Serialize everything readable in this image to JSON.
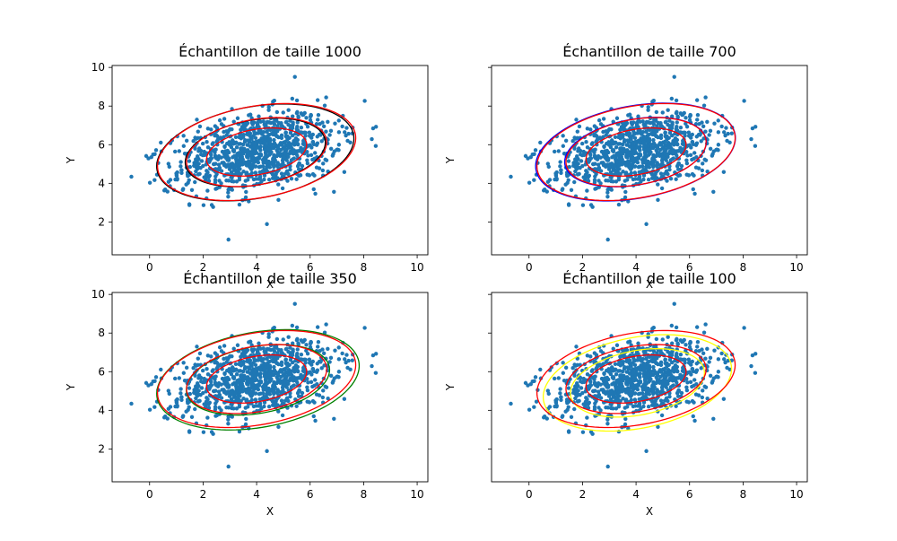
{
  "chart_data": [
    {
      "type": "scatter",
      "title": "Échantillon de taille 1000",
      "xlabel": "X",
      "ylabel": "Y",
      "xlim": [
        -1.4,
        10.4
      ],
      "ylim": [
        0.3,
        10.1
      ],
      "xticks": [
        0,
        2,
        4,
        6,
        8,
        10
      ],
      "yticks": [
        2,
        4,
        6,
        8,
        10
      ],
      "show_y_ticklabels": true,
      "point_color": "#1f77b4",
      "ellipses": [
        {
          "cx": 3.95,
          "cy": 5.6,
          "a": 3.8,
          "b": 2.33,
          "angle_deg": 18,
          "color": "#000000"
        },
        {
          "cx": 3.95,
          "cy": 5.6,
          "a": 2.7,
          "b": 1.65,
          "angle_deg": 18,
          "color": "#000000"
        },
        {
          "cx": 4.0,
          "cy": 5.62,
          "a": 3.82,
          "b": 2.33,
          "angle_deg": 18,
          "color": "#ff0000"
        },
        {
          "cx": 4.0,
          "cy": 5.62,
          "a": 2.7,
          "b": 1.66,
          "angle_deg": 18,
          "color": "#ff0000"
        },
        {
          "cx": 4.0,
          "cy": 5.62,
          "a": 1.93,
          "b": 1.15,
          "angle_deg": 18,
          "color": "#ff0000"
        }
      ]
    },
    {
      "type": "scatter",
      "title": "Échantillon de taille 700",
      "xlabel": "X",
      "ylabel": "Y",
      "xlim": [
        -1.4,
        10.4
      ],
      "ylim": [
        0.3,
        10.1
      ],
      "xticks": [
        0,
        2,
        4,
        6,
        8,
        10
      ],
      "yticks": [
        2,
        4,
        6,
        8,
        10
      ],
      "show_y_ticklabels": false,
      "point_color": "#1f77b4",
      "ellipses": [
        {
          "cx": 3.98,
          "cy": 5.62,
          "a": 3.85,
          "b": 2.35,
          "angle_deg": 18,
          "color": "#0000ff"
        },
        {
          "cx": 3.98,
          "cy": 5.62,
          "a": 2.73,
          "b": 1.67,
          "angle_deg": 18,
          "color": "#0000ff"
        },
        {
          "cx": 4.0,
          "cy": 5.62,
          "a": 3.82,
          "b": 2.33,
          "angle_deg": 18,
          "color": "#ff0000"
        },
        {
          "cx": 4.0,
          "cy": 5.62,
          "a": 2.7,
          "b": 1.66,
          "angle_deg": 18,
          "color": "#ff0000"
        },
        {
          "cx": 4.0,
          "cy": 5.62,
          "a": 1.93,
          "b": 1.15,
          "angle_deg": 18,
          "color": "#ff0000"
        }
      ]
    },
    {
      "type": "scatter",
      "title": "Échantillon de taille 350",
      "xlabel": "X",
      "ylabel": "Y",
      "xlim": [
        -1.4,
        10.4
      ],
      "ylim": [
        0.3,
        10.1
      ],
      "xticks": [
        0,
        2,
        4,
        6,
        8,
        10
      ],
      "yticks": [
        2,
        4,
        6,
        8,
        10
      ],
      "show_y_ticklabels": true,
      "point_color": "#1f77b4",
      "ellipses": [
        {
          "cx": 4.05,
          "cy": 5.58,
          "a": 3.9,
          "b": 2.42,
          "angle_deg": 18,
          "color": "#008000"
        },
        {
          "cx": 4.05,
          "cy": 5.58,
          "a": 2.76,
          "b": 1.7,
          "angle_deg": 18,
          "color": "#008000"
        },
        {
          "cx": 4.0,
          "cy": 5.62,
          "a": 3.82,
          "b": 2.33,
          "angle_deg": 18,
          "color": "#ff0000"
        },
        {
          "cx": 4.0,
          "cy": 5.62,
          "a": 2.7,
          "b": 1.66,
          "angle_deg": 18,
          "color": "#ff0000"
        },
        {
          "cx": 4.0,
          "cy": 5.62,
          "a": 1.93,
          "b": 1.15,
          "angle_deg": 18,
          "color": "#ff0000"
        }
      ]
    },
    {
      "type": "scatter",
      "title": "Échantillon de taille 100",
      "xlabel": "X",
      "ylabel": "Y",
      "xlim": [
        -1.4,
        10.4
      ],
      "ylim": [
        0.3,
        10.1
      ],
      "xticks": [
        0,
        2,
        4,
        6,
        8,
        10
      ],
      "yticks": [
        2,
        4,
        6,
        8,
        10
      ],
      "show_y_ticklabels": false,
      "point_color": "#1f77b4",
      "ellipses": [
        {
          "cx": 4.05,
          "cy": 5.42,
          "a": 3.65,
          "b": 2.3,
          "angle_deg": 20,
          "color": "#ffff00"
        },
        {
          "cx": 4.05,
          "cy": 5.42,
          "a": 2.6,
          "b": 1.63,
          "angle_deg": 20,
          "color": "#ffff00"
        },
        {
          "cx": 4.0,
          "cy": 5.62,
          "a": 3.82,
          "b": 2.33,
          "angle_deg": 18,
          "color": "#ff0000"
        },
        {
          "cx": 4.0,
          "cy": 5.62,
          "a": 2.7,
          "b": 1.66,
          "angle_deg": 18,
          "color": "#ff0000"
        },
        {
          "cx": 4.0,
          "cy": 5.62,
          "a": 1.93,
          "b": 1.15,
          "angle_deg": 18,
          "color": "#ff0000"
        }
      ]
    }
  ]
}
